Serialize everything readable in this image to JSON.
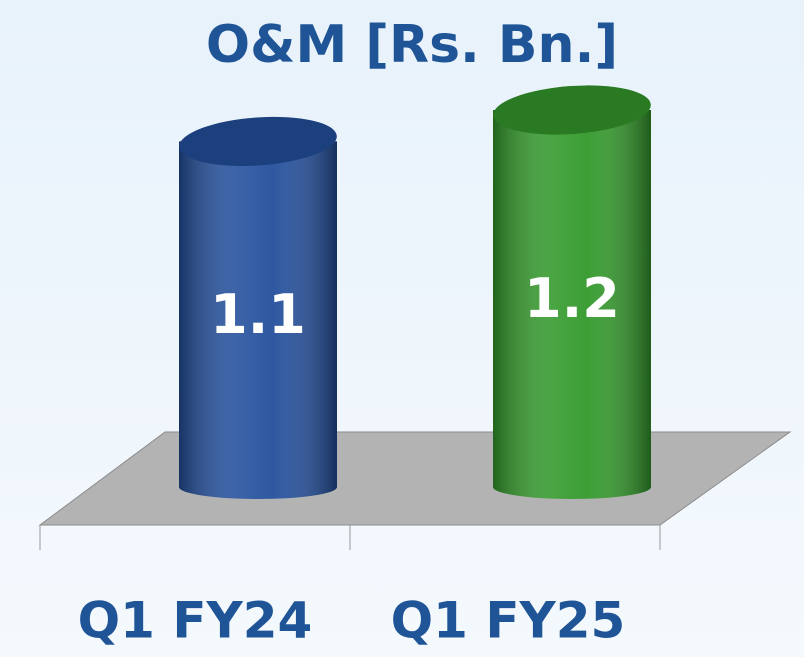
{
  "chart_data": {
    "type": "bar3d",
    "title": "O&M [Rs. Bn.]",
    "categories": [
      "Q1 FY24",
      "Q1 FY25"
    ],
    "values": [
      1.1,
      1.2
    ],
    "colors": [
      "#234f9c",
      "#33992b"
    ]
  }
}
